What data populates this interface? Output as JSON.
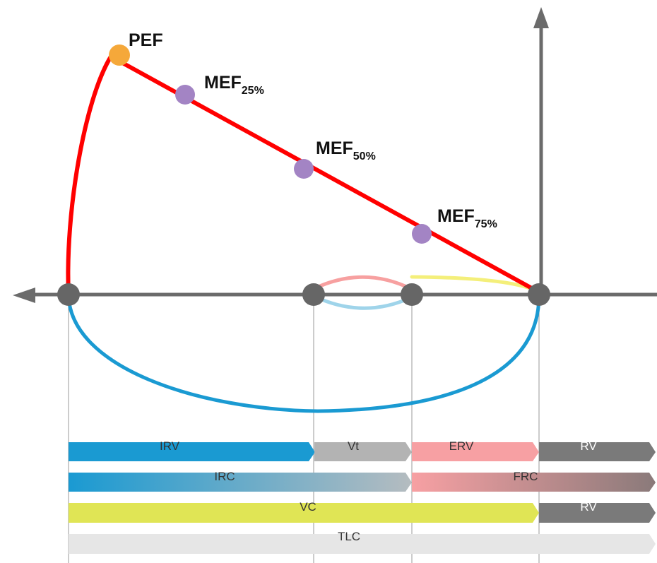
{
  "diagram": {
    "points": {
      "pef_label": "PEF",
      "mef25": {
        "main": "MEF",
        "sub": "25%"
      },
      "mef50": {
        "main": "MEF",
        "sub": "50%"
      },
      "mef75": {
        "main": "MEF",
        "sub": "75%"
      }
    },
    "colors": {
      "expiratory_curve": "#ff0000",
      "inspiratory_curve": "#1a9ad2",
      "tidal_expiration": "#f7a0a0",
      "tidal_inspiration": "#9fd4ea",
      "erv_expiration": "#f4ef7a",
      "pef_dot": "#f5a83a",
      "mef_dot": "#a384c4",
      "axis_node": "#666666",
      "axis": "#6b6b6b"
    },
    "bars": {
      "row1": [
        {
          "label": "IRV",
          "color": "#1a9ad2",
          "text_color": "#333333"
        },
        {
          "label": "Vt",
          "color": "#b3b3b3",
          "text_color": "#333333"
        },
        {
          "label": "ERV",
          "color": "#f7a0a3",
          "text_color": "#333333"
        },
        {
          "label": "RV",
          "color": "#7a7a7a",
          "text_color": "#ffffff"
        }
      ],
      "row2": [
        {
          "label": "IRC",
          "color_start": "#1a9ad2",
          "color_end": "#b5bcc0",
          "text_color": "#333333"
        },
        {
          "label": "FRC",
          "color_start": "#f7a0a3",
          "color_end": "#8a7a7a",
          "text_color": "#333333"
        }
      ],
      "row3": [
        {
          "label": "VC",
          "color": "#e0e555",
          "text_color": "#333333"
        },
        {
          "label": "RV",
          "color": "#7a7a7a",
          "text_color": "#ffffff"
        }
      ],
      "row4": [
        {
          "label": "TLC",
          "color": "#e6e6e6",
          "text_color": "#333333"
        }
      ]
    }
  }
}
